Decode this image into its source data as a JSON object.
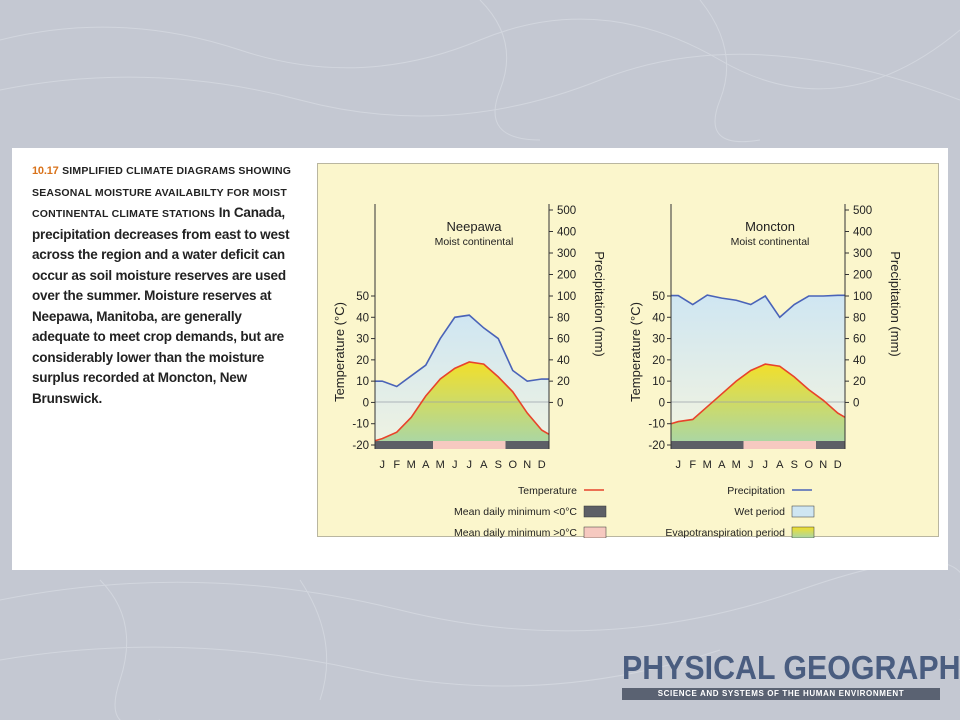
{
  "caption": {
    "figure_number": "10.17",
    "title_lines": [
      "SIMPLIFIED CLIMATE DIAGRAMS SHOWING",
      "SEASONAL MOISTURE AVAILABILTY FOR MOIST",
      "CONTINENTAL CLIMATE STATIONS"
    ],
    "body_lines": [
      "In Canada,",
      "precipitation decreases from east to west",
      "across the region and a water deficit can",
      "occur as soil moisture reserves are used",
      "over the summer. Moisture reserves at",
      "Neepawa, Manitoba, are generally",
      "adequate to meet crop demands, but are",
      "considerably lower than the moisture",
      "surplus recorded at Moncton, New",
      "Brunswick."
    ]
  },
  "legend": {
    "temperature": "Temperature",
    "precipitation": "Precipitation",
    "min_below": "Mean daily minimum <0°C",
    "min_above": "Mean daily minimum >0°C",
    "wet_period": "Wet period",
    "evap_period": "Evapotranspiration period"
  },
  "colors": {
    "temperature_line": "#e8432b",
    "precipitation_line": "#4a63b8",
    "wet_fill": "#cfe6f2",
    "evap_top": "#f2df2a",
    "evap_bottom": "#a8d6a8",
    "min_below": "#5d5f66",
    "min_above": "#f6c9c0",
    "figure_bg": "#fbf6cc"
  },
  "logo": {
    "main": "PHYSICAL GEOGRAPHY",
    "sub": "SCIENCE AND SYSTEMS OF THE HUMAN ENVIRONMENT"
  },
  "chart_data": [
    {
      "type": "line",
      "title": "Neepawa",
      "subtitle": "Moist continental",
      "x": [
        "J",
        "F",
        "M",
        "A",
        "M",
        "J",
        "J",
        "A",
        "S",
        "O",
        "N",
        "D"
      ],
      "ylabel_left": "Temperature (°C)",
      "ylabel_right": "Precipitation (mm)",
      "ylim_left": [
        -20,
        50
      ],
      "ylim_right": [
        0,
        500
      ],
      "yticks_left": [
        -20,
        -10,
        0,
        10,
        20,
        30,
        40,
        50
      ],
      "yticks_right": [
        0,
        20,
        40,
        60,
        80,
        100,
        200,
        300,
        400,
        500
      ],
      "series": [
        {
          "name": "Temperature",
          "axis": "left",
          "values": [
            -17,
            -14,
            -7,
            3,
            11,
            16,
            19,
            18,
            12,
            5,
            -5,
            -13
          ]
        },
        {
          "name": "Precipitation",
          "axis": "right",
          "values": [
            20,
            15,
            25,
            35,
            60,
            80,
            82,
            70,
            60,
            30,
            20,
            22
          ]
        }
      ],
      "mean_daily_minimum": [
        "below",
        "below",
        "below",
        "below",
        "above",
        "above",
        "above",
        "above",
        "above",
        "below",
        "below",
        "below"
      ]
    },
    {
      "type": "line",
      "title": "Moncton",
      "subtitle": "Moist continental",
      "x": [
        "J",
        "F",
        "M",
        "A",
        "M",
        "J",
        "J",
        "A",
        "S",
        "O",
        "N",
        "D"
      ],
      "ylabel_left": "Temperature (°C)",
      "ylabel_right": "Precipitation (mm)",
      "ylim_left": [
        -20,
        50
      ],
      "ylim_right": [
        0,
        500
      ],
      "yticks_left": [
        -20,
        -10,
        0,
        10,
        20,
        30,
        40,
        50
      ],
      "yticks_right": [
        0,
        20,
        40,
        60,
        80,
        100,
        200,
        300,
        400,
        500
      ],
      "series": [
        {
          "name": "Temperature",
          "axis": "left",
          "values": [
            -9,
            -8,
            -2,
            4,
            10,
            15,
            18,
            17,
            12,
            6,
            1,
            -5
          ]
        },
        {
          "name": "Precipitation",
          "axis": "right",
          "values": [
            102,
            92,
            104,
            98,
            96,
            92,
            100,
            80,
            92,
            100,
            100,
            103
          ]
        }
      ],
      "mean_daily_minimum": [
        "below",
        "below",
        "below",
        "below",
        "below",
        "above",
        "above",
        "above",
        "above",
        "above",
        "below",
        "below"
      ]
    }
  ]
}
